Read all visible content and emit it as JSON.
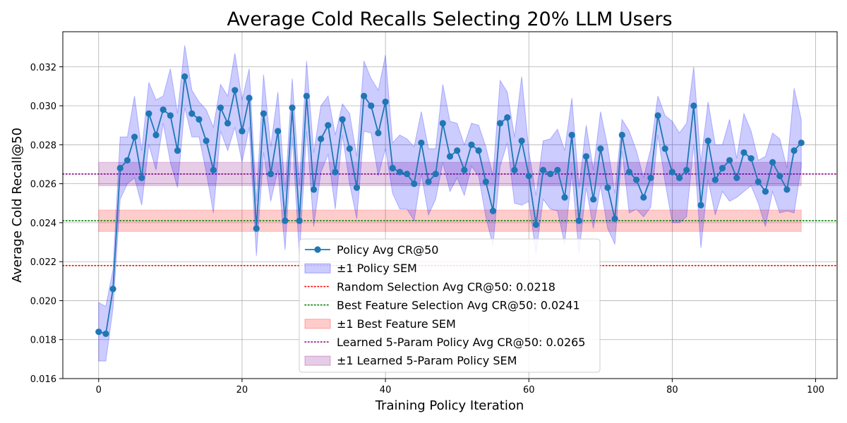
{
  "chart_data": {
    "type": "line",
    "title": "Average Cold Recalls Selecting 20% LLM Users",
    "xlabel": "Training Policy Iteration",
    "ylabel": "Average Cold Recall@50",
    "xlim": [
      -5,
      103
    ],
    "ylim": [
      0.016,
      0.0338
    ],
    "xticks": [
      0,
      20,
      40,
      60,
      80,
      100
    ],
    "xtick_labels": [
      "0",
      "20",
      "40",
      "60",
      "80",
      "100"
    ],
    "yticks": [
      0.016,
      0.018,
      0.02,
      0.022,
      0.024,
      0.026,
      0.028,
      0.03,
      0.032
    ],
    "ytick_labels": [
      "0.016",
      "0.018",
      "0.020",
      "0.022",
      "0.024",
      "0.026",
      "0.028",
      "0.030",
      "0.032"
    ],
    "grid": true,
    "legend_position": "bottom-center",
    "series": [
      {
        "name": "Policy Avg CR@50",
        "color": "#1f77b4",
        "x": [
          0,
          1,
          2,
          3,
          4,
          5,
          6,
          7,
          8,
          9,
          10,
          11,
          12,
          13,
          14,
          15,
          16,
          17,
          18,
          19,
          20,
          21,
          22,
          23,
          24,
          25,
          26,
          27,
          28,
          29,
          30,
          31,
          32,
          33,
          34,
          35,
          36,
          37,
          38,
          39,
          40,
          41,
          42,
          43,
          44,
          45,
          46,
          47,
          48,
          49,
          50,
          51,
          52,
          53,
          54,
          55,
          56,
          57,
          58,
          59,
          60,
          61,
          62,
          63,
          64,
          65,
          66,
          67,
          68,
          69,
          70,
          71,
          72,
          73,
          74,
          75,
          76,
          77,
          78,
          79,
          80,
          81,
          82,
          83,
          84,
          85,
          86,
          87,
          88,
          89,
          90,
          91,
          92,
          93,
          94,
          95,
          96,
          97,
          98
        ],
        "values": [
          0.0184,
          0.0183,
          0.0206,
          0.0268,
          0.0272,
          0.0284,
          0.0263,
          0.0296,
          0.0285,
          0.0298,
          0.0295,
          0.0277,
          0.0315,
          0.0296,
          0.0293,
          0.0282,
          0.0267,
          0.0299,
          0.0291,
          0.0308,
          0.0287,
          0.0304,
          0.0237,
          0.0296,
          0.0265,
          0.0287,
          0.0241,
          0.0299,
          0.0241,
          0.0305,
          0.0257,
          0.0283,
          0.029,
          0.0266,
          0.0293,
          0.0278,
          0.0258,
          0.0305,
          0.03,
          0.0286,
          0.0302,
          0.0268,
          0.0266,
          0.0265,
          0.026,
          0.0281,
          0.0261,
          0.0265,
          0.0291,
          0.0274,
          0.0277,
          0.0267,
          0.028,
          0.0277,
          0.0261,
          0.0246,
          0.0291,
          0.0294,
          0.0267,
          0.0282,
          0.0264,
          0.0239,
          0.0267,
          0.0265,
          0.0267,
          0.0253,
          0.0285,
          0.0241,
          0.0274,
          0.0252,
          0.0278,
          0.0258,
          0.0242,
          0.0285,
          0.0266,
          0.0262,
          0.0253,
          0.0263,
          0.0295,
          0.0278,
          0.0266,
          0.0263,
          0.0267,
          0.03,
          0.0249,
          0.0282,
          0.0262,
          0.0268,
          0.0272,
          0.0263,
          0.0276,
          0.0273,
          0.0261,
          0.0256,
          0.0271,
          0.0264,
          0.0257,
          0.0277,
          0.0281
        ],
        "sem": [
          0.0015,
          0.0014,
          0.001,
          0.0016,
          0.0012,
          0.0021,
          0.0014,
          0.0016,
          0.0018,
          0.0007,
          0.0024,
          0.0019,
          0.0016,
          0.0012,
          0.0009,
          0.0016,
          0.0022,
          0.0012,
          0.0014,
          0.0019,
          0.0016,
          0.0015,
          0.0014,
          0.002,
          0.0014,
          0.002,
          0.0015,
          0.0015,
          0.0018,
          0.0018,
          0.0019,
          0.0017,
          0.0015,
          0.0019,
          0.0008,
          0.0018,
          0.0016,
          0.0018,
          0.0014,
          0.0022,
          0.0024,
          0.0013,
          0.0019,
          0.0018,
          0.0019,
          0.0016,
          0.0017,
          0.0013,
          0.002,
          0.0018,
          0.0014,
          0.0013,
          0.0011,
          0.0013,
          0.0018,
          0.0018,
          0.0022,
          0.0013,
          0.0017,
          0.0033,
          0.0013,
          0.0015,
          0.0015,
          0.0018,
          0.0021,
          0.0024,
          0.0019,
          0.0017,
          0.0016,
          0.0015,
          0.0019,
          0.0021,
          0.0013,
          0.0008,
          0.0021,
          0.0015,
          0.001,
          0.0015,
          0.001,
          0.0017,
          0.0026,
          0.0023,
          0.0024,
          0.002,
          0.0022,
          0.002,
          0.0018,
          0.0012,
          0.0021,
          0.001,
          0.002,
          0.0014,
          0.0011,
          0.0018,
          0.0015,
          0.0019,
          0.0011,
          0.0032,
          0.0012
        ],
        "band_color": "#0000ff",
        "band_opacity": 0.2
      }
    ],
    "reference_lines": [
      {
        "name": "Random Selection Avg CR@50: 0.0218",
        "y": 0.0218,
        "color": "#ff0000",
        "style": "dotted"
      },
      {
        "name": "Best Feature Selection Avg CR@50: 0.0241",
        "y": 0.0241,
        "color": "#008000",
        "style": "dotted"
      },
      {
        "name": "Learned 5-Param Policy Avg CR@50: 0.0265",
        "y": 0.0265,
        "color": "#800080",
        "style": "dotted"
      }
    ],
    "sem_bands": [
      {
        "name": "±1 Best Feature SEM",
        "y_low": 0.02355,
        "y_high": 0.02465,
        "x_start": 0,
        "x_end": 98,
        "color": "#ff0000",
        "opacity": 0.2
      },
      {
        "name": "±1 Learned 5-Param Policy SEM",
        "y_low": 0.0259,
        "y_high": 0.0271,
        "x_start": 0,
        "x_end": 98,
        "color": "#800080",
        "opacity": 0.2
      }
    ],
    "legend": [
      {
        "label": "Policy Avg CR@50",
        "kind": "line-marker",
        "color": "#1f77b4"
      },
      {
        "label": "±1 Policy SEM",
        "kind": "patch",
        "color": "#0000ff"
      },
      {
        "label": "Random Selection Avg CR@50: 0.0218",
        "kind": "dotted",
        "color": "#ff0000"
      },
      {
        "label": "Best Feature Selection Avg CR@50: 0.0241",
        "kind": "dotted",
        "color": "#008000"
      },
      {
        "label": "±1 Best Feature SEM",
        "kind": "patch",
        "color": "#ff0000"
      },
      {
        "label": "Learned 5-Param Policy Avg CR@50: 0.0265",
        "kind": "dotted",
        "color": "#800080"
      },
      {
        "label": "±1 Learned 5-Param Policy SEM",
        "kind": "patch",
        "color": "#800080"
      }
    ]
  }
}
